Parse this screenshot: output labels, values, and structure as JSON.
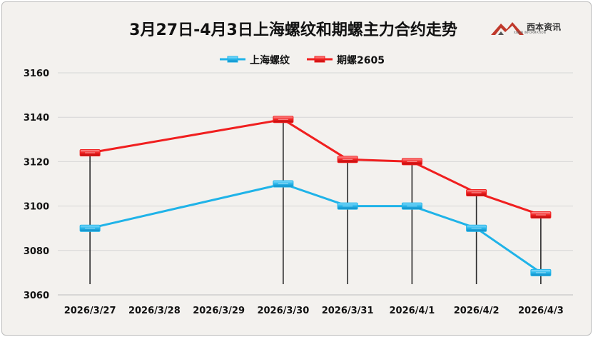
{
  "chart_data": {
    "type": "line",
    "title": "3月27日-4月3日上海螺纹和期螺主力合约走势",
    "categories": [
      "2026/3/27",
      "2026/3/28",
      "2026/3/29",
      "2026/3/30",
      "2026/3/31",
      "2026/4/1",
      "2026/4/2",
      "2026/4/3"
    ],
    "series": [
      {
        "name": "上海螺纹",
        "color": "#1fb3e8",
        "values": [
          3090,
          null,
          null,
          3110,
          3100,
          3100,
          3090,
          3070
        ]
      },
      {
        "name": "期螺2605",
        "color": "#f01f1f",
        "values": [
          3124,
          null,
          null,
          3139,
          3121,
          3120,
          3106,
          3096
        ]
      }
    ],
    "ylim": [
      3060,
      3160
    ],
    "yticks": [
      3060,
      3080,
      3100,
      3120,
      3140,
      3160
    ],
    "grid": true,
    "legend": "top-center",
    "high_low_lines": true
  },
  "logo": {
    "text": "西本资讯",
    "subtext": "XIBEN INFORMATION"
  }
}
